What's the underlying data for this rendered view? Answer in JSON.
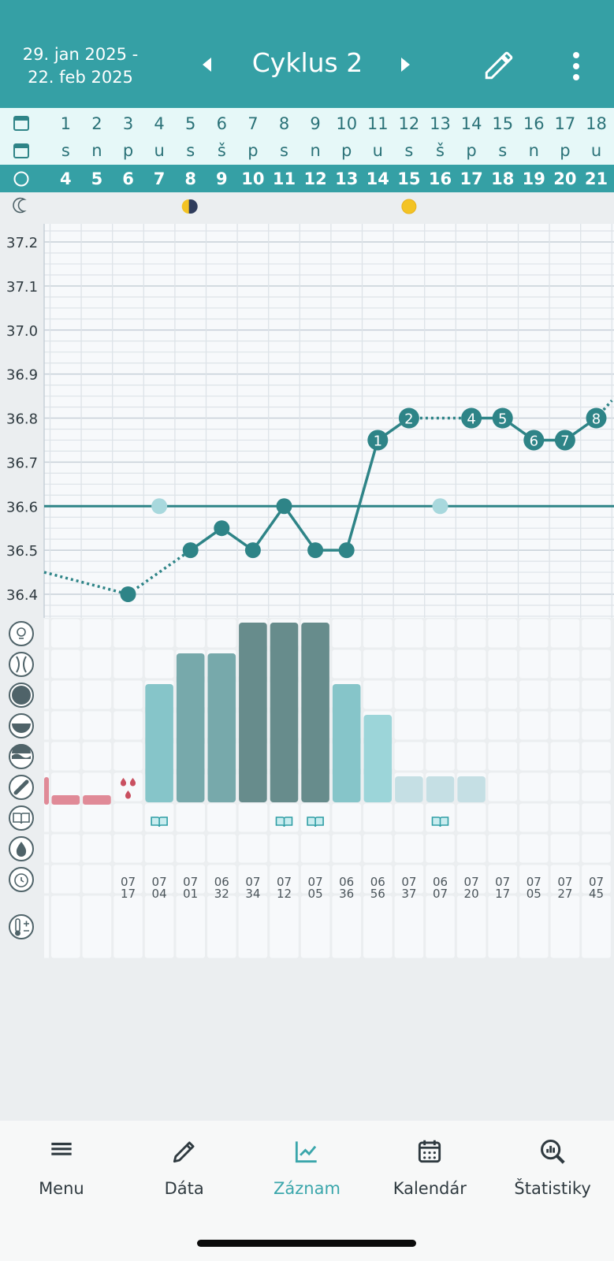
{
  "header": {
    "date_range_line1": "29. jan 2025 -",
    "date_range_line2": "22. feb 2025",
    "title": "Cyklus 2"
  },
  "days": [
    {
      "d": "1",
      "w": "s",
      "c": "4"
    },
    {
      "d": "2",
      "w": "n",
      "c": "5"
    },
    {
      "d": "3",
      "w": "p",
      "c": "6"
    },
    {
      "d": "4",
      "w": "u",
      "c": "7"
    },
    {
      "d": "5",
      "w": "s",
      "c": "8"
    },
    {
      "d": "6",
      "w": "š",
      "c": "9"
    },
    {
      "d": "7",
      "w": "p",
      "c": "10"
    },
    {
      "d": "8",
      "w": "s",
      "c": "11"
    },
    {
      "d": "9",
      "w": "n",
      "c": "12"
    },
    {
      "d": "10",
      "w": "p",
      "c": "13"
    },
    {
      "d": "11",
      "w": "u",
      "c": "14"
    },
    {
      "d": "12",
      "w": "s",
      "c": "15"
    },
    {
      "d": "13",
      "w": "š",
      "c": "16"
    },
    {
      "d": "14",
      "w": "p",
      "c": "17"
    },
    {
      "d": "15",
      "w": "s",
      "c": "18"
    },
    {
      "d": "16",
      "w": "n",
      "c": "19"
    },
    {
      "d": "17",
      "w": "p",
      "c": "20"
    },
    {
      "d": "18",
      "w": "u",
      "c": "21"
    }
  ],
  "moon_phases": [
    {
      "day": "5",
      "phase": "first-quarter-moon-icon"
    },
    {
      "day": "12",
      "phase": "full-moon-icon"
    }
  ],
  "chart_data": {
    "type": "line",
    "yticks": [
      "37.2",
      "37.1",
      "37.0",
      "36.9",
      "36.8",
      "36.7",
      "36.6",
      "36.5",
      "36.4"
    ],
    "ylim": [
      36.35,
      37.25
    ],
    "coverline": 36.6,
    "coverline_markers": [
      4,
      13
    ],
    "temps": [
      null,
      null,
      36.4,
      null,
      36.5,
      36.55,
      36.5,
      36.6,
      36.5,
      36.5,
      36.75,
      36.8,
      null,
      36.8,
      36.8,
      36.75,
      36.75,
      36.8
    ],
    "dotted_segments": [
      [
        0,
        36.45,
        3,
        36.4
      ],
      [
        3,
        36.4,
        5,
        36.5
      ],
      [
        12,
        36.8,
        14,
        36.8
      ],
      [
        18,
        36.8,
        18.5,
        36.84
      ]
    ],
    "solid_segments": [
      [
        5,
        6
      ],
      [
        6,
        7
      ],
      [
        7,
        8
      ],
      [
        8,
        9
      ],
      [
        9,
        10
      ],
      [
        10,
        11
      ],
      [
        11,
        12
      ],
      [
        14,
        15
      ],
      [
        15,
        16
      ],
      [
        16,
        17
      ],
      [
        17,
        18
      ]
    ],
    "high_labels": [
      {
        "day": 11,
        "label": "1"
      },
      {
        "day": 12,
        "label": "2"
      },
      {
        "day": 14,
        "label": "4"
      },
      {
        "day": 15,
        "label": "5"
      },
      {
        "day": 16,
        "label": "6"
      },
      {
        "day": 17,
        "label": "7"
      },
      {
        "day": 18,
        "label": "8"
      }
    ]
  },
  "mucus_bars": [
    {
      "day": 4,
      "level": 4,
      "color": "#86c5c9"
    },
    {
      "day": 5,
      "level": 5,
      "color": "#77a9ab"
    },
    {
      "day": 6,
      "level": 5,
      "color": "#77a9ab"
    },
    {
      "day": 7,
      "level": 6,
      "color": "#678c8c"
    },
    {
      "day": 8,
      "level": 6,
      "color": "#678c8c"
    },
    {
      "day": 9,
      "level": 6,
      "color": "#678c8c"
    },
    {
      "day": 10,
      "level": 4,
      "color": "#86c5c9"
    },
    {
      "day": 11,
      "level": 3,
      "color": "#9cd5d9"
    },
    {
      "day": 12,
      "level": 1,
      "color": "#c5dfe4"
    },
    {
      "day": 13,
      "level": 1,
      "color": "#c5dfe4"
    },
    {
      "day": 14,
      "level": 1,
      "color": "#c5dfe4"
    }
  ],
  "bleeding_days": [
    0,
    1,
    2
  ],
  "spotting_day": 3,
  "note_days": [
    4,
    8,
    9,
    13
  ],
  "times": [
    {
      "day": 3,
      "h": "07",
      "m": "17"
    },
    {
      "day": 4,
      "h": "07",
      "m": "04"
    },
    {
      "day": 5,
      "h": "07",
      "m": "01"
    },
    {
      "day": 6,
      "h": "06",
      "m": "32"
    },
    {
      "day": 7,
      "h": "07",
      "m": "34"
    },
    {
      "day": 8,
      "h": "07",
      "m": "12"
    },
    {
      "day": 9,
      "h": "07",
      "m": "05"
    },
    {
      "day": 10,
      "h": "06",
      "m": "36"
    },
    {
      "day": 11,
      "h": "06",
      "m": "56"
    },
    {
      "day": 12,
      "h": "07",
      "m": "37"
    },
    {
      "day": 13,
      "h": "06",
      "m": "07"
    },
    {
      "day": 14,
      "h": "07",
      "m": "20"
    },
    {
      "day": 15,
      "h": "07",
      "m": "17"
    },
    {
      "day": 16,
      "h": "07",
      "m": "05"
    },
    {
      "day": 17,
      "h": "07",
      "m": "27"
    },
    {
      "day": 18,
      "h": "07",
      "m": "45"
    }
  ],
  "nav": [
    {
      "id": "menu",
      "label": "Menu",
      "icon": "menu-icon"
    },
    {
      "id": "data",
      "label": "Dáta",
      "icon": "pencil-icon"
    },
    {
      "id": "record",
      "label": "Záznam",
      "icon": "chart-icon",
      "active": true
    },
    {
      "id": "calendar",
      "label": "Kalendár",
      "icon": "calendar-icon"
    },
    {
      "id": "stats",
      "label": "Štatistiky",
      "icon": "stats-icon"
    }
  ],
  "colors": {
    "primary": "#35a0a5",
    "line": "#2e8487",
    "light_band": "#e6f8f8",
    "coverline_marker": "#a8d8dd",
    "bleeding": "#e08a97"
  }
}
